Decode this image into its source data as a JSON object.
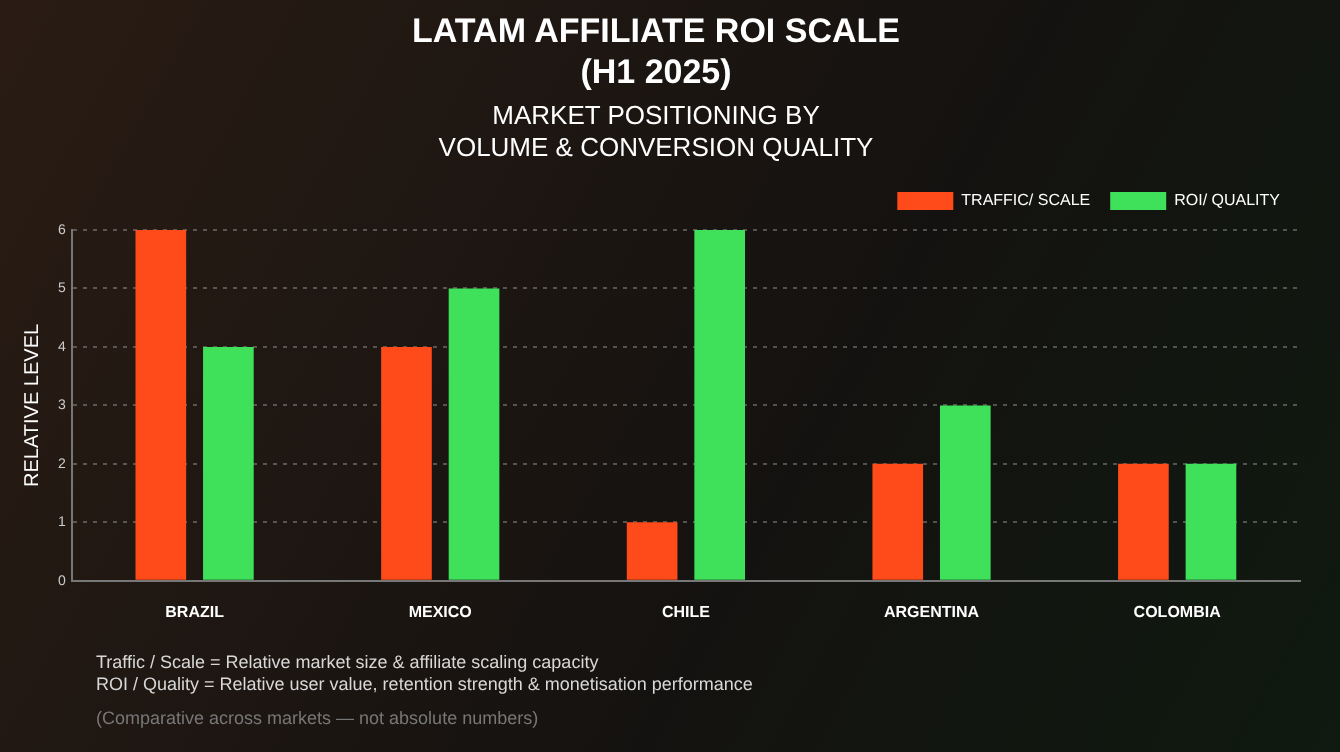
{
  "chart_data": {
    "type": "bar",
    "title": "LATAM AFFILIATE ROI SCALE\n(H1 2025)",
    "subtitle": "MARKET POSITIONING BY\nVOLUME & CONVERSION QUALITY",
    "ylabel": "RELATIVE LEVEL",
    "categories": [
      "BRAZIL",
      "MEXICO",
      "CHILE",
      "ARGENTINA",
      "COLOMBIA"
    ],
    "series": [
      {
        "name": "TRAFFIC/ SCALE",
        "color": "#ff4a1a",
        "values": [
          6,
          4,
          1,
          2,
          2
        ]
      },
      {
        "name": "ROI/ QUALITY",
        "color": "#3fe05a",
        "values": [
          4,
          5,
          6,
          3,
          2
        ]
      }
    ],
    "ylim": [
      0,
      6
    ],
    "yticks": [
      0,
      1,
      2,
      3,
      4,
      5,
      6
    ],
    "grid": "y",
    "legend": "top right",
    "annotations": [
      "Traffic / Scale = Relative market size & affiliate scaling capacity",
      "ROI / Quality = Relative user value, retention strength & monetisation performance",
      "(Comparative across markets — not absolute numbers)"
    ]
  }
}
